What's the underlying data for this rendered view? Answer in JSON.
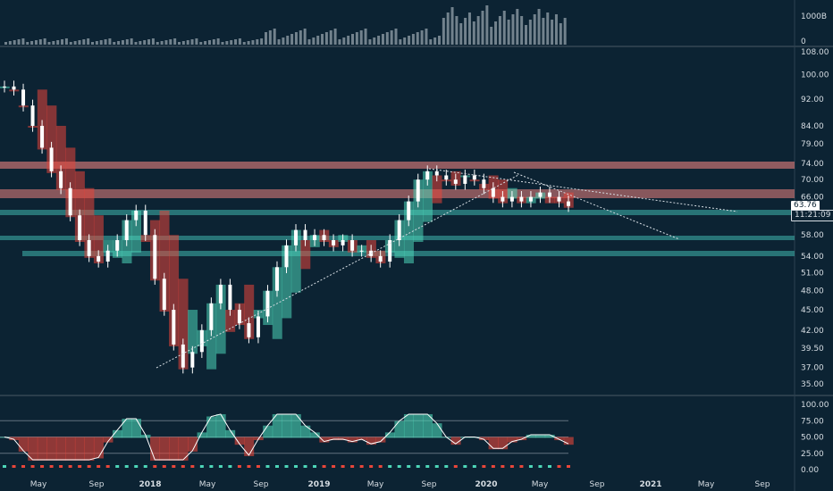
{
  "volume_pane": {
    "scale_labels": [
      "1000B",
      "0"
    ]
  },
  "price_pane": {
    "scale_labels": [
      "108.00",
      "100.00",
      "92.00",
      "84.00",
      "79.00",
      "74.00",
      "70.00",
      "66.00",
      "62.00",
      "58.00",
      "54.00",
      "51.00",
      "48.00",
      "45.00",
      "42.00",
      "39.50",
      "37.00",
      "35.00"
    ],
    "last_price": "63.76",
    "countdown": "11:21:09"
  },
  "oscillator_pane": {
    "scale_labels": [
      "100.00",
      "75.00",
      "50.00",
      "25.00",
      "0.00"
    ]
  },
  "time_axis": {
    "labels": [
      "May",
      "Sep",
      "2018",
      "May",
      "Sep",
      "2019",
      "May",
      "Sep",
      "2020",
      "May",
      "Sep",
      "2021",
      "May",
      "Sep"
    ]
  },
  "colors": {
    "background": "#0c2333",
    "bull": "#4dd6b8",
    "bear": "#e8463a",
    "zone_red": "#c97373",
    "zone_teal": "#3fb7ad",
    "text": "#d6dde3",
    "grid_line": "#4a5a66"
  },
  "chart_data": {
    "type": "line",
    "title": "",
    "series": [
      {
        "values": [
          96,
          95,
          90,
          84,
          78,
          72,
          68,
          62,
          57,
          54,
          53,
          55,
          57,
          61,
          63,
          58,
          50,
          45,
          40,
          37,
          39,
          42,
          46,
          49,
          45,
          43,
          41,
          44,
          48,
          52,
          56,
          59,
          57,
          58,
          57,
          56,
          57,
          55,
          55,
          54,
          53,
          57,
          61,
          65,
          70,
          72,
          71,
          70,
          69,
          71,
          70,
          68,
          66,
          65,
          66,
          65,
          66,
          67,
          66,
          65,
          64
        ]
      }
    ],
    "ylim": [
      35,
      108
    ],
    "y_scale": "log",
    "oscillator": {
      "levels": [
        25,
        50,
        75
      ],
      "ylim": [
        0,
        100
      ]
    }
  }
}
